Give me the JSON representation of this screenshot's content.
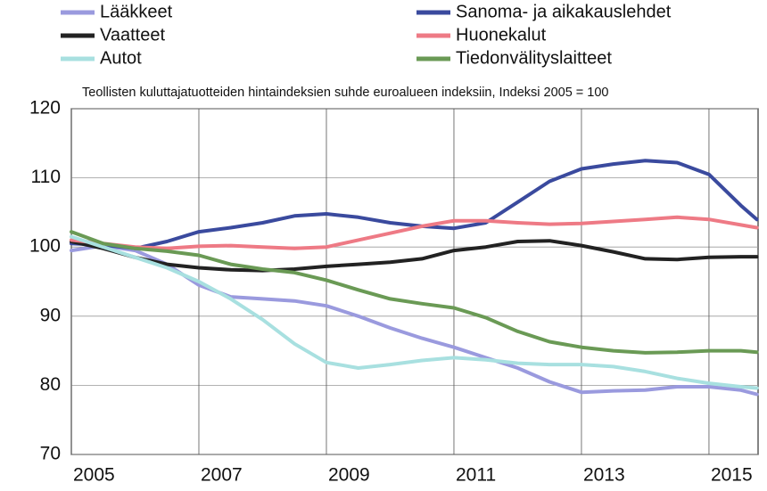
{
  "chart_data": {
    "type": "line",
    "subtitle": "Teollisten kuluttajatuotteiden hintaindeksien suhde euroalueen indeksiin, Indeksi 2005 = 100",
    "x": [
      2005,
      2005.5,
      2006,
      2006.5,
      2007,
      2007.5,
      2008,
      2008.5,
      2009,
      2009.5,
      2010,
      2010.5,
      2011,
      2011.5,
      2012,
      2012.5,
      2013,
      2013.5,
      2014,
      2014.5,
      2015,
      2015.5,
      2015.75
    ],
    "series": [
      {
        "name": "Lääkkeet",
        "color": "#9a9ade",
        "values": [
          99.5,
          100.2,
          99.5,
          97.5,
          94.5,
          92.8,
          92.5,
          92.2,
          91.5,
          90,
          88.3,
          86.8,
          85.5,
          84,
          82.5,
          80.5,
          79,
          79.2,
          79.3,
          79.8,
          79.8,
          79.3,
          78.7
        ]
      },
      {
        "name": "Sanoma- ja aikakauslehdet",
        "color": "#3a4a9e",
        "values": [
          100.5,
          100.3,
          99.8,
          100.8,
          102.2,
          102.8,
          103.5,
          104.5,
          104.8,
          104.3,
          103.5,
          103,
          102.7,
          103.5,
          106.5,
          109.5,
          111.3,
          112,
          112.5,
          112.2,
          110.5,
          106,
          104
        ]
      },
      {
        "name": "Vaatteet",
        "color": "#222222",
        "values": [
          100.8,
          99.8,
          98.5,
          97.5,
          97,
          96.7,
          96.6,
          96.8,
          97.2,
          97.5,
          97.8,
          98.3,
          99.5,
          100,
          100.8,
          100.9,
          100.2,
          99.3,
          98.3,
          98.2,
          98.5,
          98.6,
          98.6
        ]
      },
      {
        "name": "Huonekalut",
        "color": "#ee7a85",
        "values": [
          101,
          100.5,
          100,
          99.8,
          100.1,
          100.2,
          100,
          99.8,
          100,
          101,
          102,
          103,
          103.8,
          103.8,
          103.5,
          103.3,
          103.4,
          103.7,
          104,
          104.3,
          104,
          103.2,
          102.8
        ]
      },
      {
        "name": "Autot",
        "color": "#a8e0e0",
        "values": [
          101.5,
          100,
          98.5,
          97,
          95,
          92.5,
          89.5,
          86,
          83.3,
          82.5,
          83,
          83.6,
          84,
          83.7,
          83.2,
          83,
          83,
          82.7,
          82,
          81,
          80.3,
          79.8,
          79.6
        ]
      },
      {
        "name": "Tiedonvälityslaitteet",
        "color": "#6a9a55",
        "values": [
          102.2,
          100.5,
          99.8,
          99.4,
          98.8,
          97.5,
          96.8,
          96.3,
          95.2,
          93.8,
          92.5,
          91.8,
          91.2,
          89.8,
          87.8,
          86.3,
          85.5,
          85,
          84.7,
          84.8,
          85,
          85,
          84.8
        ]
      }
    ],
    "xlim": [
      2005,
      2015.77
    ],
    "xticks": [
      2005,
      2007,
      2009,
      2011,
      2013,
      2015
    ],
    "ylim": [
      70,
      120
    ],
    "yticks": [
      70,
      80,
      90,
      100,
      110,
      120
    ],
    "grid": true
  }
}
